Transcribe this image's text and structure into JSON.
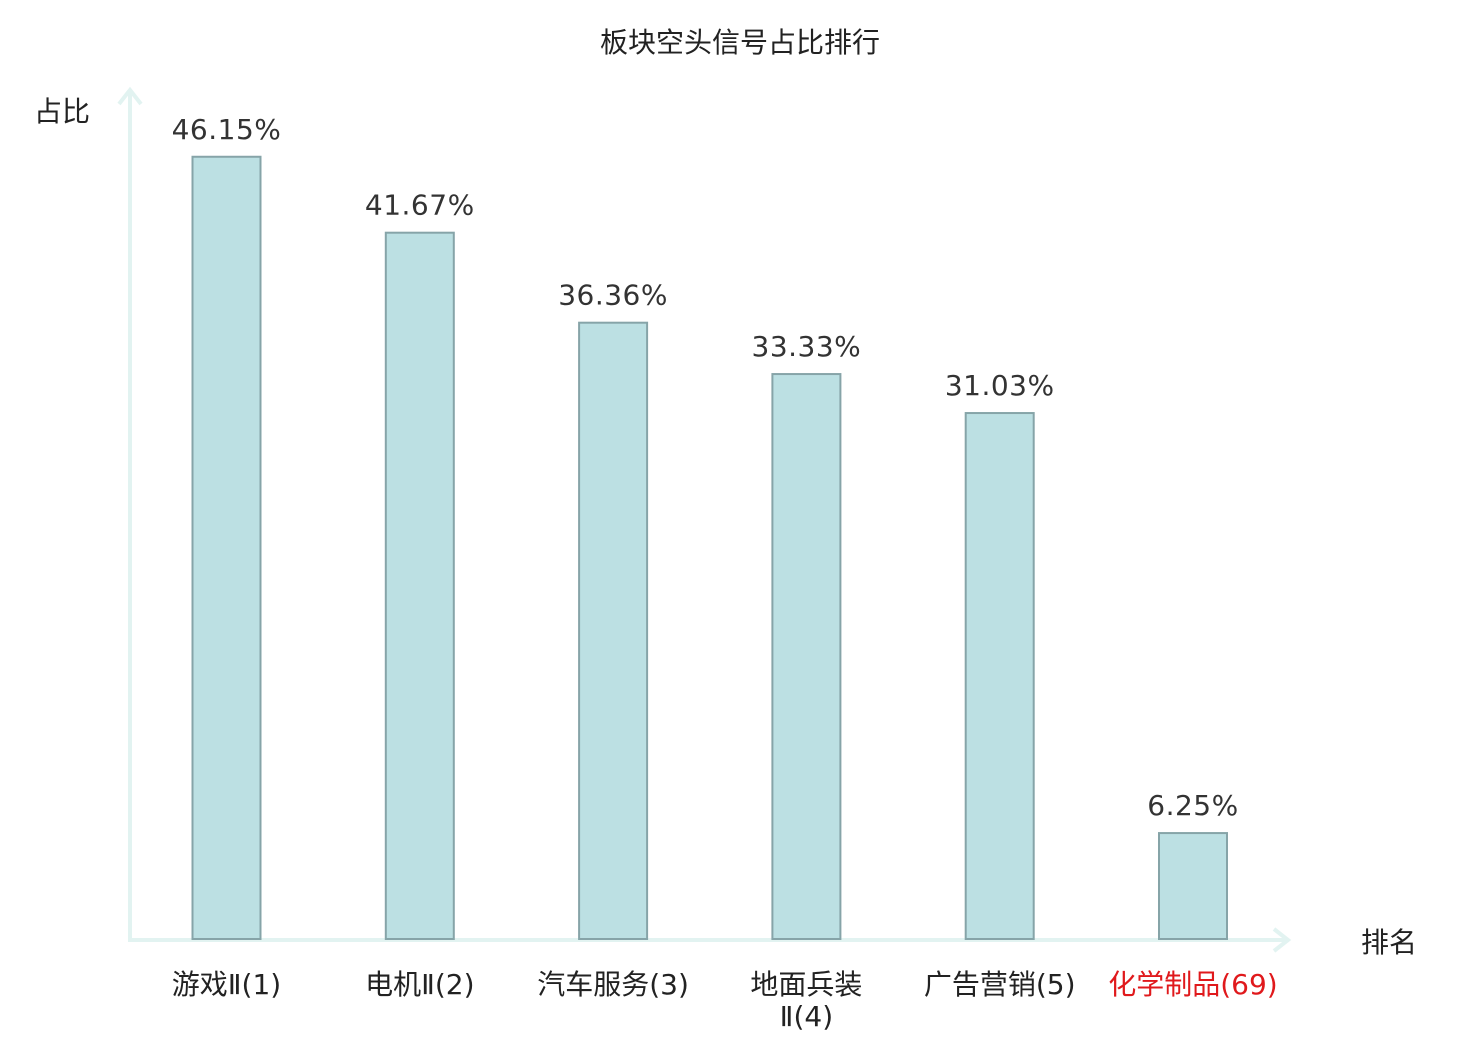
{
  "chart_data": {
    "type": "bar",
    "title": "板块空头信号占比排行",
    "ylabel": "占比",
    "xlabel": "排名",
    "ylim": [
      0,
      50
    ],
    "categories": [
      {
        "lines": [
          "游戏Ⅱ(1)"
        ],
        "highlight": false
      },
      {
        "lines": [
          "电机Ⅱ(2)"
        ],
        "highlight": false
      },
      {
        "lines": [
          "汽车服务(3)"
        ],
        "highlight": false
      },
      {
        "lines": [
          "地面兵装",
          "Ⅱ(4)"
        ],
        "highlight": false
      },
      {
        "lines": [
          "广告营销(5)"
        ],
        "highlight": false
      },
      {
        "lines": [
          "化学制品(69)"
        ],
        "highlight": true
      }
    ],
    "values": [
      46.15,
      41.67,
      36.36,
      33.33,
      31.03,
      6.25
    ],
    "value_labels": [
      "46.15%",
      "41.67%",
      "36.36%",
      "33.33%",
      "31.03%",
      "6.25%"
    ],
    "colors": {
      "bar_fill": "#bce0e3",
      "bar_stroke": "#86a4a8",
      "axis": "#e2f3f1",
      "highlight_text": "#e0191c"
    },
    "grid": false,
    "legend": "none"
  }
}
